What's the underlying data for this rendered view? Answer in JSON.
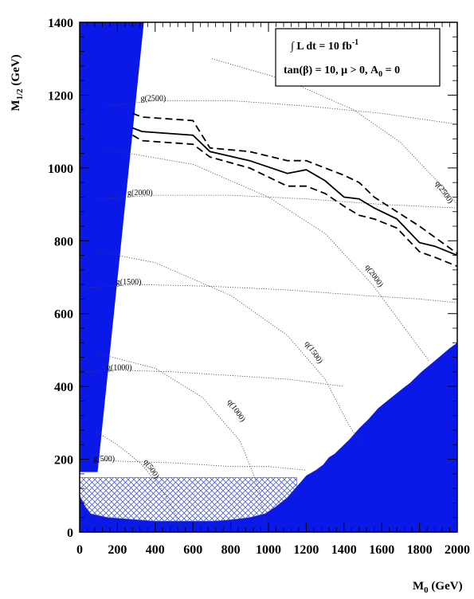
{
  "chart_data": {
    "type": "line",
    "title": "",
    "xlabel": "M0 (GeV)",
    "ylabel": "M1/2 (GeV)",
    "xlabel_parts": {
      "main": "M",
      "sub": "0",
      "unit": " (GeV)"
    },
    "ylabel_parts": {
      "main": "M",
      "sub": "1/2",
      "unit": " (GeV)"
    },
    "xlim": [
      0,
      2000
    ],
    "ylim": [
      0,
      1400
    ],
    "xticks": [
      0,
      200,
      400,
      600,
      800,
      1000,
      1200,
      1400,
      1600,
      1800,
      2000
    ],
    "yticks": [
      0,
      200,
      400,
      600,
      800,
      1000,
      1200,
      1400
    ],
    "grid": false,
    "legend": {
      "placement": "top-right",
      "line1": "∫ L dt = 10 fb",
      "line1_sup": "-1",
      "line2": "tan(β) = 10, μ > 0, A",
      "line2_sub": "0",
      "line2_end": " = 0"
    },
    "colors": {
      "excluded": "#0a18e8",
      "hatch": "#4a5ed0",
      "curves": "#000000",
      "contours": "#444444"
    },
    "excluded_regions": [
      {
        "name": "left-theory-excluded",
        "points": [
          [
            0,
            1400
          ],
          [
            340,
            1400
          ],
          [
            95,
            165
          ],
          [
            0,
            165
          ]
        ]
      },
      {
        "name": "right-theory-excluded",
        "points": [
          [
            2000,
            0
          ],
          [
            2000,
            520
          ],
          [
            1960,
            505
          ],
          [
            1880,
            470
          ],
          [
            1810,
            440
          ],
          [
            1750,
            410
          ],
          [
            1700,
            390
          ],
          [
            1640,
            365
          ],
          [
            1580,
            340
          ],
          [
            1530,
            310
          ],
          [
            1480,
            285
          ],
          [
            1430,
            255
          ],
          [
            1400,
            240
          ],
          [
            1350,
            215
          ],
          [
            1320,
            205
          ],
          [
            1290,
            185
          ],
          [
            1250,
            170
          ],
          [
            1200,
            155
          ],
          [
            1150,
            125
          ],
          [
            1100,
            95
          ],
          [
            1040,
            70
          ],
          [
            980,
            50
          ],
          [
            900,
            40
          ],
          [
            820,
            35
          ],
          [
            760,
            32
          ],
          [
            700,
            30
          ],
          [
            700,
            0
          ]
        ]
      },
      {
        "name": "bottom-excluded",
        "points": [
          [
            0,
            0
          ],
          [
            0,
            100
          ],
          [
            30,
            70
          ],
          [
            60,
            50
          ],
          [
            150,
            40
          ],
          [
            400,
            30
          ],
          [
            700,
            30
          ],
          [
            820,
            35
          ],
          [
            900,
            40
          ],
          [
            980,
            50
          ],
          [
            1040,
            70
          ],
          [
            1100,
            95
          ],
          [
            1150,
            125
          ],
          [
            1150,
            0
          ]
        ]
      }
    ],
    "hatched_region": {
      "name": "lep-excluded",
      "points": [
        [
          0,
          150
        ],
        [
          1150,
          150
        ],
        [
          1150,
          125
        ],
        [
          1100,
          95
        ],
        [
          1040,
          70
        ],
        [
          980,
          50
        ],
        [
          900,
          40
        ],
        [
          820,
          35
        ],
        [
          760,
          32
        ],
        [
          700,
          30
        ],
        [
          400,
          30
        ],
        [
          150,
          40
        ],
        [
          60,
          50
        ],
        [
          30,
          70
        ],
        [
          0,
          100
        ]
      ]
    },
    "series": [
      {
        "style": "solid",
        "points": [
          [
            280,
            1110
          ],
          [
            330,
            1100
          ],
          [
            600,
            1090
          ],
          [
            690,
            1045
          ],
          [
            900,
            1020
          ],
          [
            1100,
            985
          ],
          [
            1200,
            995
          ],
          [
            1300,
            965
          ],
          [
            1400,
            920
          ],
          [
            1480,
            915
          ],
          [
            1560,
            890
          ],
          [
            1680,
            860
          ],
          [
            1800,
            795
          ],
          [
            1880,
            785
          ],
          [
            2000,
            760
          ]
        ]
      },
      {
        "style": "dashed",
        "points": [
          [
            280,
            1150
          ],
          [
            330,
            1140
          ],
          [
            600,
            1130
          ],
          [
            690,
            1055
          ],
          [
            900,
            1045
          ],
          [
            1100,
            1020
          ],
          [
            1200,
            1020
          ],
          [
            1300,
            1000
          ],
          [
            1400,
            980
          ],
          [
            1480,
            960
          ],
          [
            1560,
            920
          ],
          [
            1680,
            880
          ],
          [
            1800,
            840
          ],
          [
            1880,
            810
          ],
          [
            2000,
            765
          ]
        ]
      },
      {
        "style": "dashed",
        "points": [
          [
            280,
            1090
          ],
          [
            330,
            1075
          ],
          [
            600,
            1065
          ],
          [
            690,
            1030
          ],
          [
            900,
            1000
          ],
          [
            1100,
            950
          ],
          [
            1200,
            950
          ],
          [
            1300,
            930
          ],
          [
            1400,
            895
          ],
          [
            1480,
            870
          ],
          [
            1560,
            860
          ],
          [
            1680,
            835
          ],
          [
            1800,
            770
          ],
          [
            1880,
            755
          ],
          [
            2000,
            730
          ]
        ]
      }
    ],
    "contours": [
      {
        "label": "g(500)",
        "label_at": [
          130,
          195
        ],
        "points": [
          [
            0,
            200
          ],
          [
            200,
            195
          ],
          [
            500,
            190
          ],
          [
            800,
            180
          ],
          [
            1000,
            180
          ],
          [
            1200,
            170
          ]
        ]
      },
      {
        "label": "g(1000)",
        "label_at": [
          210,
          445
        ],
        "points": [
          [
            0,
            440
          ],
          [
            200,
            445
          ],
          [
            500,
            440
          ],
          [
            800,
            430
          ],
          [
            1100,
            420
          ],
          [
            1400,
            400
          ]
        ]
      },
      {
        "label": "g(1500)",
        "label_at": [
          260,
          680
        ],
        "points": [
          [
            0,
            670
          ],
          [
            300,
            680
          ],
          [
            700,
            675
          ],
          [
            1100,
            665
          ],
          [
            1500,
            650
          ],
          [
            1800,
            640
          ],
          [
            2000,
            630
          ]
        ]
      },
      {
        "label": "g(2000)",
        "label_at": [
          320,
          925
        ],
        "points": [
          [
            100,
            915
          ],
          [
            400,
            925
          ],
          [
            800,
            925
          ],
          [
            1200,
            915
          ],
          [
            1600,
            900
          ],
          [
            2000,
            890
          ]
        ]
      },
      {
        "label": "g(2500)",
        "label_at": [
          390,
          1185
        ],
        "points": [
          [
            150,
            1170
          ],
          [
            400,
            1185
          ],
          [
            800,
            1185
          ],
          [
            1200,
            1170
          ],
          [
            1600,
            1150
          ],
          [
            2000,
            1120
          ]
        ]
      },
      {
        "label": "q(500)",
        "label_at": [
          370,
          170
        ],
        "points": [
          [
            90,
            275
          ],
          [
            200,
            240
          ],
          [
            320,
            190
          ],
          [
            420,
            130
          ],
          [
            500,
            60
          ],
          [
            540,
            0
          ]
        ]
      },
      {
        "label": "q(1000)",
        "label_at": [
          820,
          330
        ],
        "points": [
          [
            100,
            490
          ],
          [
            400,
            450
          ],
          [
            650,
            370
          ],
          [
            850,
            250
          ],
          [
            950,
            120
          ],
          [
            990,
            0
          ]
        ]
      },
      {
        "label": "q(1500)",
        "label_at": [
          1230,
          490
        ],
        "points": [
          [
            100,
            770
          ],
          [
            400,
            740
          ],
          [
            800,
            650
          ],
          [
            1100,
            540
          ],
          [
            1300,
            420
          ],
          [
            1420,
            300
          ],
          [
            1480,
            250
          ]
        ]
      },
      {
        "label": "q(2000)",
        "label_at": [
          1550,
          700
        ],
        "points": [
          [
            150,
            1050
          ],
          [
            600,
            1010
          ],
          [
            1000,
            920
          ],
          [
            1300,
            820
          ],
          [
            1550,
            680
          ],
          [
            1750,
            540
          ],
          [
            1850,
            470
          ]
        ]
      },
      {
        "label": "q(2500)",
        "label_at": [
          1920,
          930
        ],
        "points": [
          [
            700,
            1300
          ],
          [
            1100,
            1240
          ],
          [
            1450,
            1160
          ],
          [
            1700,
            1070
          ],
          [
            1900,
            960
          ],
          [
            2000,
            900
          ]
        ]
      }
    ]
  }
}
